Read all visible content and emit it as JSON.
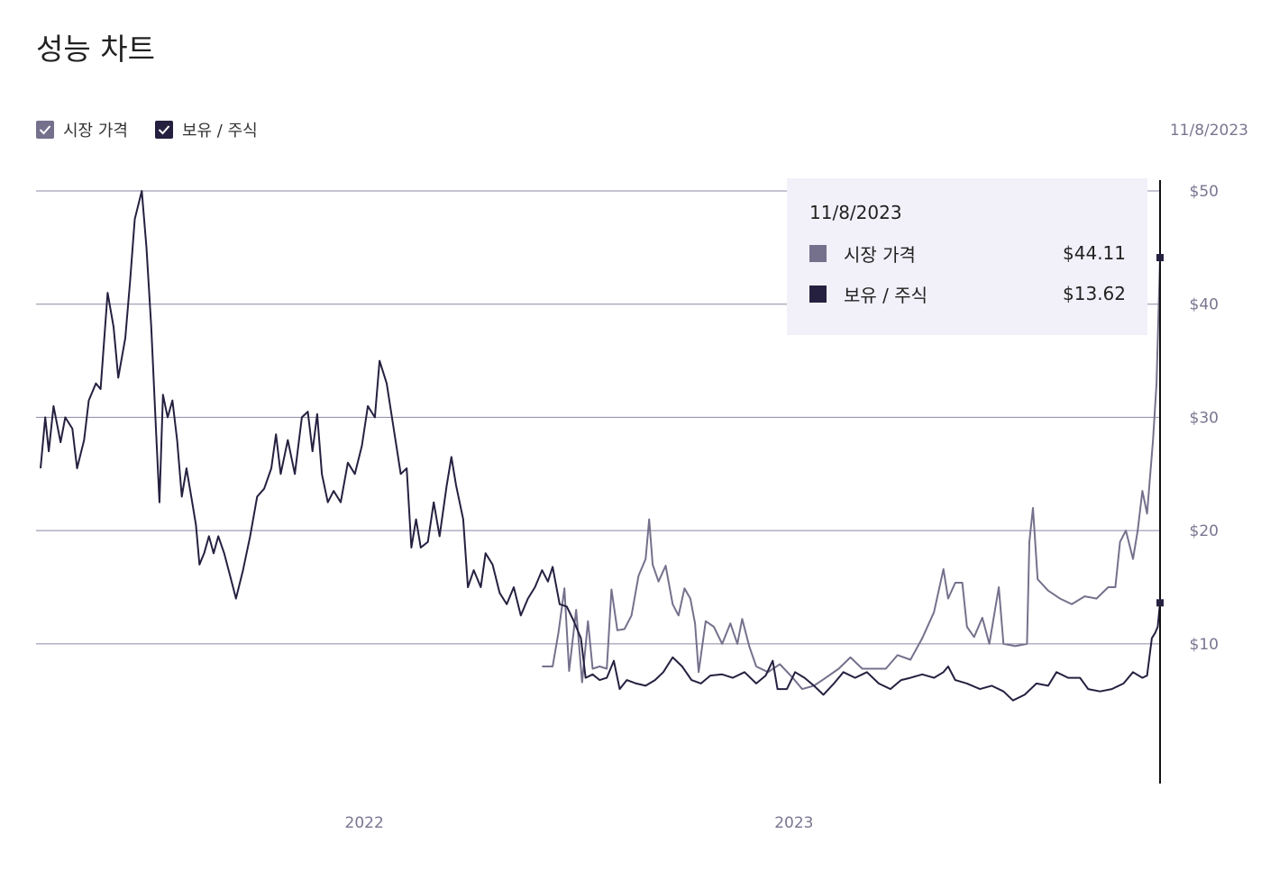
{
  "header": {
    "title": "성능 차트"
  },
  "legend": {
    "items": [
      {
        "label": "시장 가격",
        "checked": true,
        "color": "#75718c"
      },
      {
        "label": "보유 / 주식",
        "checked": true,
        "color": "#262040"
      }
    ]
  },
  "selected_date": "11/8/2023",
  "tooltip": {
    "date": "11/8/2023",
    "rows": [
      {
        "label": "시장 가격",
        "value": "$44.11",
        "color": "#75718c"
      },
      {
        "label": "보유 / 주식",
        "value": "$13.62",
        "color": "#262040"
      }
    ]
  },
  "chart_data": {
    "type": "line",
    "title": "성능 차트",
    "xlabel": "",
    "ylabel": "",
    "x_tick_labels": [
      "2022",
      "2023"
    ],
    "y_tick_labels": [
      "$10",
      "$20",
      "$30",
      "$40",
      "$50"
    ],
    "ylim": [
      -2.5,
      50
    ],
    "grid": true,
    "legend_position": "top-left",
    "series": [
      {
        "name": "시장 가격",
        "color": "#75718c",
        "points": [
          [
            "2022-06-01",
            8.0
          ],
          [
            "2022-06-10",
            8.0
          ],
          [
            "2022-06-15",
            11.0
          ],
          [
            "2022-06-20",
            14.9
          ],
          [
            "2022-06-24",
            7.6
          ],
          [
            "2022-06-30",
            13.0
          ],
          [
            "2022-07-05",
            6.6
          ],
          [
            "2022-07-10",
            12.0
          ],
          [
            "2022-07-14",
            7.8
          ],
          [
            "2022-07-20",
            8.0
          ],
          [
            "2022-07-26",
            7.8
          ],
          [
            "2022-07-30",
            14.8
          ],
          [
            "2022-08-04",
            11.2
          ],
          [
            "2022-08-10",
            11.3
          ],
          [
            "2022-08-16",
            12.5
          ],
          [
            "2022-08-22",
            16.0
          ],
          [
            "2022-08-28",
            17.5
          ],
          [
            "2022-08-31",
            21.0
          ],
          [
            "2022-09-03",
            17.0
          ],
          [
            "2022-09-08",
            15.5
          ],
          [
            "2022-09-14",
            16.9
          ],
          [
            "2022-09-20",
            13.5
          ],
          [
            "2022-09-25",
            12.5
          ],
          [
            "2022-09-30",
            14.9
          ],
          [
            "2022-10-05",
            14.0
          ],
          [
            "2022-10-09",
            11.8
          ],
          [
            "2022-10-12",
            7.5
          ],
          [
            "2022-10-18",
            12.0
          ],
          [
            "2022-10-25",
            11.5
          ],
          [
            "2022-11-01",
            10.0
          ],
          [
            "2022-11-08",
            11.8
          ],
          [
            "2022-11-14",
            10.0
          ],
          [
            "2022-11-18",
            12.2
          ],
          [
            "2022-11-24",
            9.8
          ],
          [
            "2022-11-30",
            8.0
          ],
          [
            "2022-12-10",
            7.5
          ],
          [
            "2022-12-20",
            8.2
          ],
          [
            "2022-12-31",
            7.0
          ],
          [
            "2023-01-08",
            6.0
          ],
          [
            "2023-01-18",
            6.3
          ],
          [
            "2023-01-28",
            7.0
          ],
          [
            "2023-02-08",
            7.8
          ],
          [
            "2023-02-18",
            8.8
          ],
          [
            "2023-02-28",
            7.8
          ],
          [
            "2023-03-10",
            7.8
          ],
          [
            "2023-03-20",
            7.8
          ],
          [
            "2023-03-30",
            9.0
          ],
          [
            "2023-04-10",
            8.6
          ],
          [
            "2023-04-20",
            10.5
          ],
          [
            "2023-04-30",
            12.8
          ],
          [
            "2023-05-08",
            16.6
          ],
          [
            "2023-05-12",
            14.0
          ],
          [
            "2023-05-18",
            15.4
          ],
          [
            "2023-05-24",
            15.4
          ],
          [
            "2023-05-28",
            11.5
          ],
          [
            "2023-06-03",
            10.6
          ],
          [
            "2023-06-10",
            12.3
          ],
          [
            "2023-06-16",
            10.0
          ],
          [
            "2023-06-24",
            15.0
          ],
          [
            "2023-06-28",
            10.0
          ],
          [
            "2023-07-08",
            9.8
          ],
          [
            "2023-07-18",
            10.0
          ],
          [
            "2023-07-20",
            19.0
          ],
          [
            "2023-07-23",
            22.0
          ],
          [
            "2023-07-27",
            15.7
          ],
          [
            "2023-08-05",
            14.7
          ],
          [
            "2023-08-15",
            14.0
          ],
          [
            "2023-08-25",
            13.5
          ],
          [
            "2023-09-05",
            14.2
          ],
          [
            "2023-09-15",
            14.0
          ],
          [
            "2023-09-25",
            15.0
          ],
          [
            "2023-10-01",
            15.0
          ],
          [
            "2023-10-05",
            19.0
          ],
          [
            "2023-10-10",
            20.0
          ],
          [
            "2023-10-16",
            17.5
          ],
          [
            "2023-10-20",
            20.0
          ],
          [
            "2023-10-24",
            23.5
          ],
          [
            "2023-10-28",
            21.5
          ],
          [
            "2023-11-02",
            28.0
          ],
          [
            "2023-11-05",
            33.0
          ],
          [
            "2023-11-08",
            44.11
          ]
        ]
      },
      {
        "name": "보유 / 주식",
        "color": "#262040",
        "points": [
          [
            "2021-04-01",
            25.5
          ],
          [
            "2021-04-05",
            30.0
          ],
          [
            "2021-04-08",
            27.0
          ],
          [
            "2021-04-12",
            31.0
          ],
          [
            "2021-04-18",
            27.8
          ],
          [
            "2021-04-22",
            30.0
          ],
          [
            "2021-04-28",
            29.0
          ],
          [
            "2021-05-02",
            25.5
          ],
          [
            "2021-05-08",
            28.0
          ],
          [
            "2021-05-12",
            31.5
          ],
          [
            "2021-05-18",
            33.0
          ],
          [
            "2021-05-22",
            32.5
          ],
          [
            "2021-05-28",
            41.0
          ],
          [
            "2021-06-02",
            38.0
          ],
          [
            "2021-06-06",
            33.5
          ],
          [
            "2021-06-12",
            37.0
          ],
          [
            "2021-06-16",
            42.0
          ],
          [
            "2021-06-20",
            47.5
          ],
          [
            "2021-06-26",
            50.0
          ],
          [
            "2021-06-30",
            45.0
          ],
          [
            "2021-07-04",
            38.0
          ],
          [
            "2021-07-08",
            29.0
          ],
          [
            "2021-07-11",
            22.5
          ],
          [
            "2021-07-14",
            32.0
          ],
          [
            "2021-07-18",
            30.0
          ],
          [
            "2021-07-22",
            31.5
          ],
          [
            "2021-07-26",
            28.0
          ],
          [
            "2021-07-30",
            23.0
          ],
          [
            "2021-08-03",
            25.5
          ],
          [
            "2021-08-07",
            23.0
          ],
          [
            "2021-08-11",
            20.5
          ],
          [
            "2021-08-14",
            17.0
          ],
          [
            "2021-08-18",
            18.0
          ],
          [
            "2021-08-22",
            19.5
          ],
          [
            "2021-08-26",
            18.0
          ],
          [
            "2021-08-30",
            19.5
          ],
          [
            "2021-09-04",
            18.0
          ],
          [
            "2021-09-09",
            16.0
          ],
          [
            "2021-09-14",
            14.0
          ],
          [
            "2021-09-20",
            16.5
          ],
          [
            "2021-09-26",
            19.5
          ],
          [
            "2021-10-02",
            23.0
          ],
          [
            "2021-10-08",
            23.7
          ],
          [
            "2021-10-14",
            25.5
          ],
          [
            "2021-10-18",
            28.5
          ],
          [
            "2021-10-22",
            25.0
          ],
          [
            "2021-10-28",
            28.0
          ],
          [
            "2021-11-03",
            25.0
          ],
          [
            "2021-11-09",
            30.0
          ],
          [
            "2021-11-14",
            30.5
          ],
          [
            "2021-11-18",
            27.0
          ],
          [
            "2021-11-22",
            30.3
          ],
          [
            "2021-11-26",
            25.0
          ],
          [
            "2021-12-01",
            22.5
          ],
          [
            "2021-12-06",
            23.5
          ],
          [
            "2021-12-12",
            22.5
          ],
          [
            "2021-12-18",
            26.0
          ],
          [
            "2021-12-24",
            25.0
          ],
          [
            "2021-12-30",
            27.5
          ],
          [
            "2022-01-04",
            31.0
          ],
          [
            "2022-01-10",
            30.0
          ],
          [
            "2022-01-14",
            35.0
          ],
          [
            "2022-01-20",
            33.0
          ],
          [
            "2022-01-26",
            29.0
          ],
          [
            "2022-02-01",
            25.0
          ],
          [
            "2022-02-06",
            25.5
          ],
          [
            "2022-02-10",
            18.5
          ],
          [
            "2022-02-14",
            21.0
          ],
          [
            "2022-02-18",
            18.5
          ],
          [
            "2022-02-24",
            19.0
          ],
          [
            "2022-03-01",
            22.5
          ],
          [
            "2022-03-06",
            19.5
          ],
          [
            "2022-03-12",
            24.0
          ],
          [
            "2022-03-16",
            26.5
          ],
          [
            "2022-03-20",
            24.0
          ],
          [
            "2022-03-26",
            21.0
          ],
          [
            "2022-03-30",
            15.0
          ],
          [
            "2022-04-04",
            16.5
          ],
          [
            "2022-04-10",
            15.0
          ],
          [
            "2022-04-14",
            18.0
          ],
          [
            "2022-04-20",
            17.0
          ],
          [
            "2022-04-26",
            14.5
          ],
          [
            "2022-05-02",
            13.5
          ],
          [
            "2022-05-08",
            15.0
          ],
          [
            "2022-05-14",
            12.5
          ],
          [
            "2022-05-20",
            14.0
          ],
          [
            "2022-05-26",
            15.0
          ],
          [
            "2022-06-01",
            16.5
          ],
          [
            "2022-06-06",
            15.5
          ],
          [
            "2022-06-10",
            16.8
          ],
          [
            "2022-06-16",
            13.5
          ],
          [
            "2022-06-22",
            13.3
          ],
          [
            "2022-06-28",
            12.0
          ],
          [
            "2022-07-04",
            10.5
          ],
          [
            "2022-07-08",
            7.0
          ],
          [
            "2022-07-14",
            7.3
          ],
          [
            "2022-07-20",
            6.8
          ],
          [
            "2022-07-26",
            7.0
          ],
          [
            "2022-08-01",
            8.5
          ],
          [
            "2022-08-06",
            6.0
          ],
          [
            "2022-08-12",
            6.8
          ],
          [
            "2022-08-20",
            6.5
          ],
          [
            "2022-08-28",
            6.3
          ],
          [
            "2022-09-05",
            6.8
          ],
          [
            "2022-09-12",
            7.5
          ],
          [
            "2022-09-20",
            8.8
          ],
          [
            "2022-09-28",
            8.0
          ],
          [
            "2022-10-06",
            6.8
          ],
          [
            "2022-10-14",
            6.5
          ],
          [
            "2022-10-22",
            7.2
          ],
          [
            "2022-11-01",
            7.3
          ],
          [
            "2022-11-10",
            7.0
          ],
          [
            "2022-11-20",
            7.5
          ],
          [
            "2022-11-30",
            6.5
          ],
          [
            "2022-12-08",
            7.2
          ],
          [
            "2022-12-14",
            8.5
          ],
          [
            "2022-12-18",
            6.0
          ],
          [
            "2022-12-26",
            6.0
          ],
          [
            "2023-01-02",
            7.5
          ],
          [
            "2023-01-10",
            7.0
          ],
          [
            "2023-01-18",
            6.3
          ],
          [
            "2023-01-26",
            5.5
          ],
          [
            "2023-02-04",
            6.5
          ],
          [
            "2023-02-12",
            7.5
          ],
          [
            "2023-02-22",
            7.0
          ],
          [
            "2023-03-04",
            7.5
          ],
          [
            "2023-03-14",
            6.5
          ],
          [
            "2023-03-24",
            6.0
          ],
          [
            "2023-04-02",
            6.8
          ],
          [
            "2023-04-10",
            7.0
          ],
          [
            "2023-04-20",
            7.3
          ],
          [
            "2023-04-30",
            7.0
          ],
          [
            "2023-05-08",
            7.5
          ],
          [
            "2023-05-12",
            8.0
          ],
          [
            "2023-05-18",
            6.8
          ],
          [
            "2023-05-28",
            6.5
          ],
          [
            "2023-06-08",
            6.0
          ],
          [
            "2023-06-18",
            6.3
          ],
          [
            "2023-06-28",
            5.8
          ],
          [
            "2023-07-06",
            5.0
          ],
          [
            "2023-07-16",
            5.5
          ],
          [
            "2023-07-26",
            6.5
          ],
          [
            "2023-08-05",
            6.3
          ],
          [
            "2023-08-12",
            7.5
          ],
          [
            "2023-08-22",
            7.0
          ],
          [
            "2023-09-01",
            7.0
          ],
          [
            "2023-09-08",
            6.0
          ],
          [
            "2023-09-18",
            5.8
          ],
          [
            "2023-09-28",
            6.0
          ],
          [
            "2023-10-08",
            6.5
          ],
          [
            "2023-10-16",
            7.5
          ],
          [
            "2023-10-24",
            7.0
          ],
          [
            "2023-10-28",
            7.2
          ],
          [
            "2023-11-01",
            10.5
          ],
          [
            "2023-11-04",
            11.0
          ],
          [
            "2023-11-06",
            11.5
          ],
          [
            "2023-11-08",
            13.62
          ]
        ]
      }
    ]
  }
}
